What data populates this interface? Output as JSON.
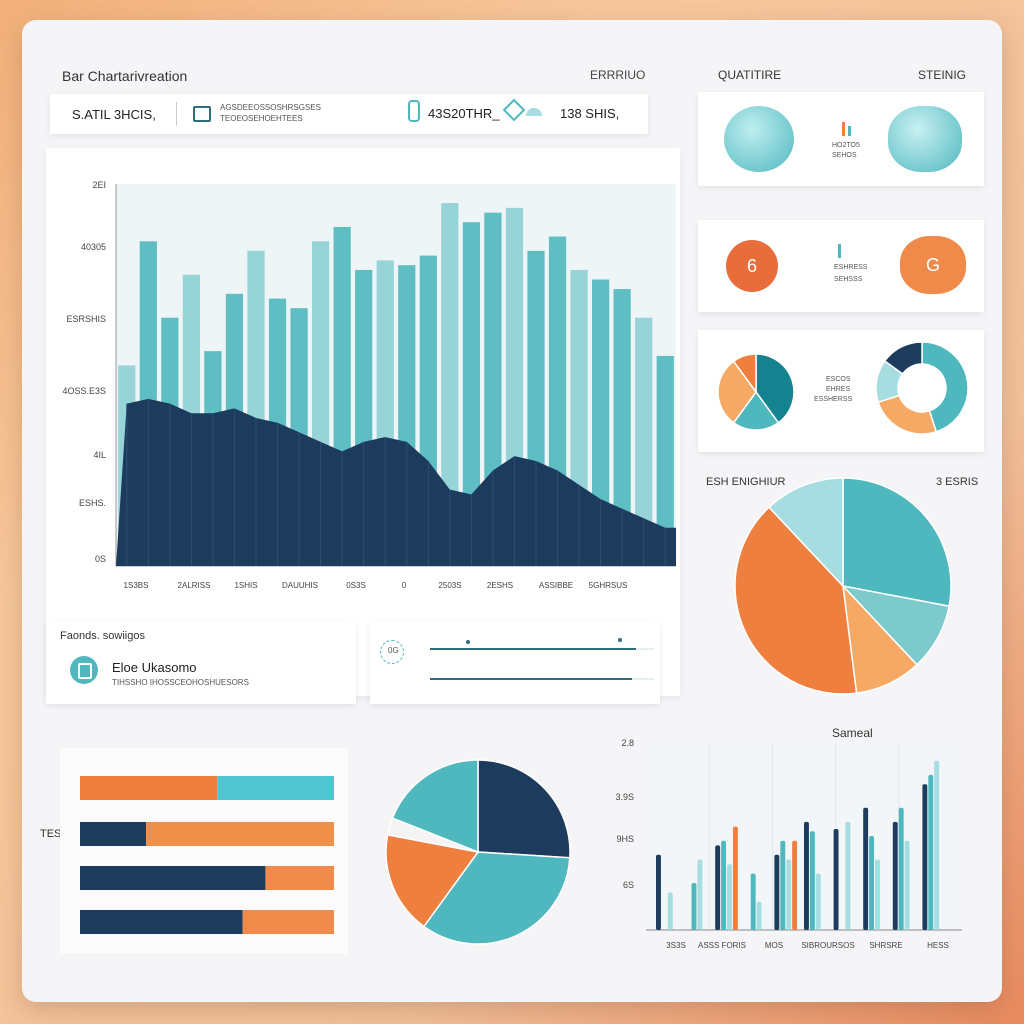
{
  "colors": {
    "navy": "#1d3b5c",
    "teal": "#4fb8bf",
    "teal_light": "#a6dde0",
    "orange": "#ef7f3f",
    "orange_light": "#f5a964"
  },
  "header": {
    "title": "Bar Chartarivreation",
    "right_label": "ERRRIUO"
  },
  "toolbar": {
    "left_value": "S.ATIL 3HCIS,",
    "mid_text_1": "AGSDEEOSSOSHRSGSES",
    "mid_text_2": "TEOEOSEHOEHTEES",
    "value_2": "43S20THR_",
    "value_3": "138 SHIS,"
  },
  "main_chart": {
    "y_tick_labels": [
      "2EI",
      "40305",
      "ESRSHIS",
      "4OSS.E3S",
      "4IL",
      "ESHS.",
      "0S"
    ],
    "x_tick_labels": [
      "1S3BS",
      "2ALRISS",
      "1SHIS",
      "DAUUHIS",
      "0S3S",
      "0",
      "2503S",
      "2ESHS",
      "ASSIBBE",
      "5GHRSUS"
    ]
  },
  "chart_data": {
    "type": "bar",
    "x": [
      1,
      2,
      3,
      4,
      5,
      6,
      7,
      8,
      9,
      10,
      11,
      12,
      13,
      14,
      15,
      16,
      17,
      18,
      19,
      20,
      21,
      22,
      23,
      24,
      25,
      26
    ],
    "series": [
      {
        "values": [
          42,
          68,
          52,
          61,
          45,
          57,
          66,
          56,
          54,
          68,
          71,
          62,
          64,
          63,
          65,
          76,
          72,
          74,
          75,
          66,
          69,
          62,
          60,
          58,
          52,
          44
        ]
      },
      {
        "values": [
          34,
          35,
          34,
          32,
          32,
          33,
          31,
          30,
          28,
          26,
          24,
          26,
          27,
          26,
          22,
          16,
          15,
          20,
          23,
          22,
          20,
          17,
          14,
          12,
          10,
          8
        ]
      }
    ],
    "ylim": [
      0,
      80
    ]
  },
  "feature_card": {
    "title": "Faonds. sowiigos",
    "heading": "Eloe Ukasomo",
    "subtext": "TIHSSHO IHOSSCEOHOSHUESORS"
  },
  "progress_card": {
    "label_1": "0G",
    "bar_1": 0.92,
    "bar_2": 0.9
  },
  "kpi": {
    "left_title": "QUATITIRE",
    "right_title": "STEINIG",
    "row1": {
      "text_1": "HO2TO5",
      "text_2": "SEHOS"
    },
    "row2": {
      "left_value": "6",
      "right_value": "G",
      "text_1": "ESHRESS",
      "text_2": "SEHSSS"
    },
    "row3": {
      "text_1": "ESCOS",
      "text_2": "EHRES",
      "text_3": "ESSHERSS"
    }
  },
  "pie_section": {
    "left_label": "ESH ENIGHIUR",
    "right_label": "3 ESRIS",
    "slices": [
      {
        "value": 28,
        "color": "#4fb8bf"
      },
      {
        "value": 10,
        "color": "#7ccacb"
      },
      {
        "value": 10,
        "color": "#f5a964"
      },
      {
        "value": 40,
        "color": "#ef7f3f"
      },
      {
        "value": 12,
        "color": "#a6dde0"
      }
    ]
  },
  "hbar_chart": {
    "side_label": "TESS.",
    "rows": [
      {
        "left": 0.54,
        "left_color": "#ef7f3f",
        "right_color": "#4fc6cf"
      },
      {
        "left": 0.26,
        "left_color": "#1d3b5c",
        "right_color": "#ef8f4a"
      },
      {
        "left": 0.73,
        "left_color": "#1d3b5c",
        "right_color": "#f08a4a"
      },
      {
        "left": 0.64,
        "left_color": "#1d3b5c",
        "right_color": "#f08a4a"
      }
    ]
  },
  "bottom_pie": {
    "slices": [
      {
        "value": 26,
        "color": "#1d3b5c"
      },
      {
        "value": 34,
        "color": "#4fb8bf"
      },
      {
        "value": 18,
        "color": "#ef7f3f"
      },
      {
        "value": 3,
        "color": "#f4f4f4"
      },
      {
        "value": 19,
        "color": "#4fb8bf"
      }
    ]
  },
  "right_bar_chart": {
    "title": "Sameal",
    "y_tick_labels": [
      "2.8",
      "3.9S",
      "9HS",
      "6S"
    ],
    "x_tick_labels": [
      "3S3S",
      "ASSS FORIS",
      "MOS",
      "SIBROURSOS",
      "SHRSRE",
      "HESS"
    ],
    "series": [
      {
        "color": "#1d3b5c",
        "values": [
          32,
          0,
          36,
          0,
          32,
          46,
          43,
          52,
          46,
          62
        ]
      },
      {
        "color": "#4fb8bf",
        "values": [
          0,
          20,
          38,
          24,
          38,
          42,
          0,
          40,
          52,
          66
        ]
      },
      {
        "color": "#a6dde0",
        "values": [
          16,
          30,
          28,
          12,
          30,
          24,
          46,
          30,
          38,
          72
        ]
      },
      {
        "color": "#ef7f3f",
        "values": [
          0,
          0,
          44,
          0,
          38,
          0,
          0,
          0,
          0,
          0
        ]
      }
    ],
    "ylim": [
      0,
      80
    ]
  }
}
